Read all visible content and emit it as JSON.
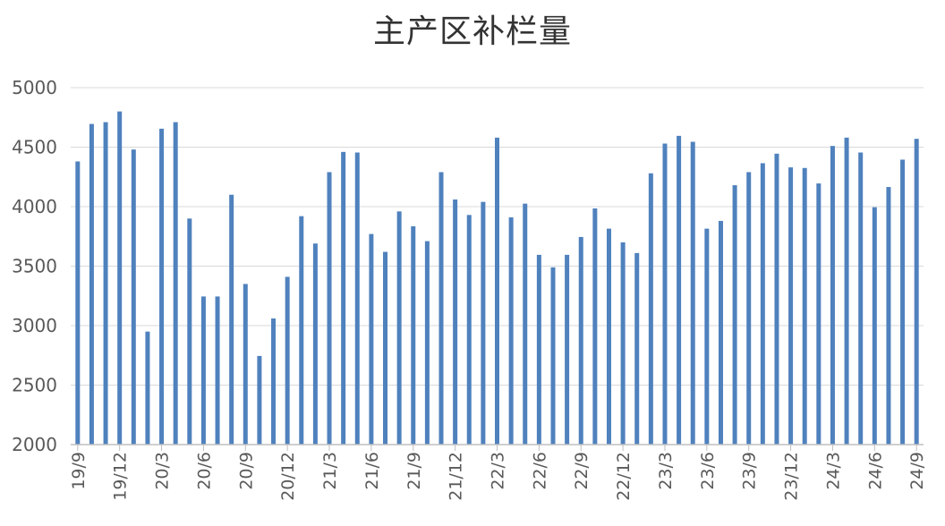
{
  "chart_data": {
    "type": "bar",
    "title": "主产区补栏量",
    "xlabel": "",
    "ylabel": "",
    "ylim": [
      2000,
      5000
    ],
    "yticks": [
      2000,
      2500,
      3000,
      3500,
      4000,
      4500,
      5000
    ],
    "grid": true,
    "legend": "none",
    "bar_color": "#4f81bd",
    "categories": [
      "19/9",
      "19/10",
      "19/11",
      "19/12",
      "20/1",
      "20/2",
      "20/3",
      "20/4",
      "20/5",
      "20/6",
      "20/7",
      "20/8",
      "20/9",
      "20/10",
      "20/11",
      "20/12",
      "21/1",
      "21/2",
      "21/3",
      "21/4",
      "21/5",
      "21/6",
      "21/7",
      "21/8",
      "21/9",
      "21/10",
      "21/11",
      "21/12",
      "22/1",
      "22/2",
      "22/3",
      "22/4",
      "22/5",
      "22/6",
      "22/7",
      "22/8",
      "22/9",
      "22/10",
      "22/11",
      "22/12",
      "23/1",
      "23/2",
      "23/3",
      "23/4",
      "23/5",
      "23/6",
      "23/7",
      "23/8",
      "23/9",
      "23/10",
      "23/11",
      "23/12",
      "24/1",
      "24/2",
      "24/3",
      "24/4",
      "24/5",
      "24/6",
      "24/7",
      "24/8",
      "24/9"
    ],
    "tick_labels": [
      "19/9",
      "19/12",
      "20/3",
      "20/6",
      "20/9",
      "20/12",
      "21/3",
      "21/6",
      "21/9",
      "21/12",
      "22/3",
      "22/6",
      "22/9",
      "22/12",
      "23/3",
      "23/6",
      "23/9",
      "23/12",
      "24/3",
      "24/6",
      "24/9"
    ],
    "values": [
      4380,
      4695,
      4710,
      4800,
      4480,
      2950,
      4655,
      4710,
      3900,
      3245,
      3245,
      4100,
      3350,
      2745,
      3060,
      3410,
      3920,
      3690,
      4290,
      4460,
      4455,
      3770,
      3620,
      3960,
      3835,
      3710,
      4290,
      4060,
      3930,
      4040,
      4580,
      3910,
      4025,
      3595,
      3490,
      3595,
      3745,
      3985,
      3815,
      3700,
      3610,
      4280,
      4530,
      4595,
      4545,
      3815,
      3880,
      4180,
      4290,
      4365,
      4445,
      4330,
      4325,
      4195,
      4510,
      4580,
      4455,
      3995,
      4165,
      4395,
      4570
    ]
  }
}
